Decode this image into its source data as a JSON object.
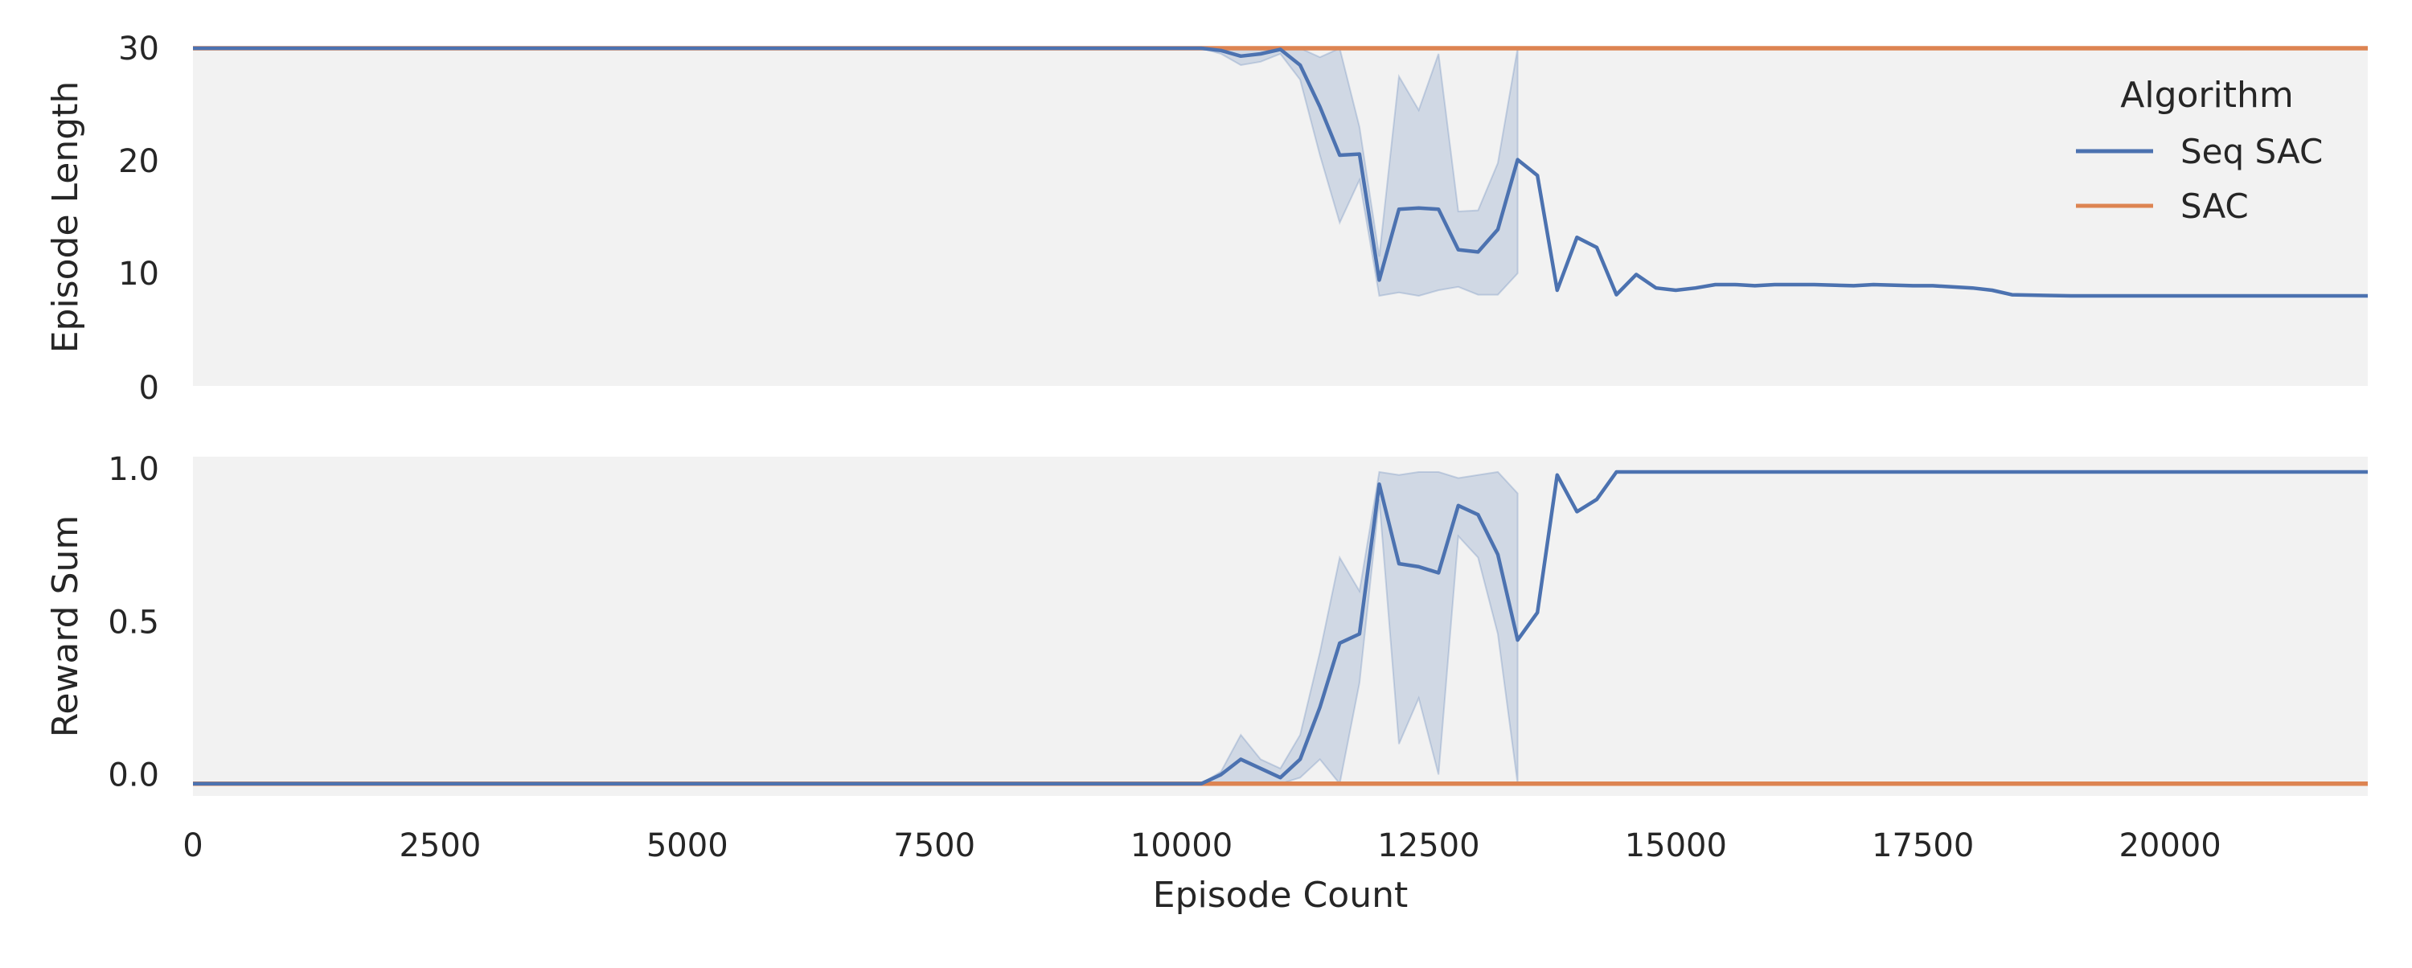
{
  "legend": {
    "title": "Algorithm",
    "entries": [
      {
        "label": "Seq SAC",
        "color": "#4c72b0"
      },
      {
        "label": "SAC",
        "color": "#dd8452"
      }
    ],
    "placement": "top-right"
  },
  "colors": {
    "plot_background": "#f2f2f2",
    "seq_sac": "#4c72b0",
    "seq_sac_band": "#4c72b0",
    "sac": "#dd8452"
  },
  "chart_data": [
    {
      "type": "line",
      "ylabel": "Episode Length",
      "xlabel": "",
      "xlim": [
        0,
        22000
      ],
      "ylim": [
        0,
        30
      ],
      "yticks": [
        0,
        10,
        20,
        30
      ],
      "ytick_labels": [
        "0",
        "10",
        "20",
        "30"
      ],
      "grid": false,
      "series": [
        {
          "name": "Seq SAC",
          "x": [
            0,
            10000,
            10200,
            10400,
            10600,
            10800,
            11000,
            11200,
            11400,
            11600,
            11800,
            12000,
            12200,
            12400,
            12600,
            12800,
            13000,
            13200,
            13400,
            13600,
            13800,
            14000,
            14200,
            14400,
            14600,
            14800,
            15000,
            15200,
            15400,
            15600,
            15800,
            16000,
            16400,
            16800,
            17000,
            17400,
            17600,
            18000,
            18200,
            18400,
            19000,
            20000,
            21000,
            22000
          ],
          "y": [
            30,
            30,
            30,
            29.8,
            29.3,
            29.5,
            29.9,
            28.5,
            24.8,
            20.5,
            20.6,
            9.4,
            15.7,
            15.8,
            15.7,
            12.1,
            11.9,
            13.9,
            20.1,
            18.7,
            8.5,
            13.2,
            12.3,
            8.1,
            9.9,
            8.7,
            8.5,
            8.7,
            9.0,
            9.0,
            8.9,
            9.0,
            9.0,
            8.9,
            9.0,
            8.9,
            8.9,
            8.7,
            8.5,
            8.1,
            8.0,
            8.0,
            8.0,
            8.0
          ],
          "ci_x": [
            10000,
            10200,
            10400,
            10600,
            10800,
            11000,
            11200,
            11400,
            11600,
            11800,
            12000,
            12200,
            12400,
            12600,
            12800,
            13000,
            13200,
            13400
          ],
          "ci_low": [
            30,
            30,
            29.5,
            28.5,
            28.8,
            29.5,
            27.2,
            20.5,
            14.5,
            18.3,
            8.0,
            8.3,
            8.0,
            8.5,
            8.8,
            8.1,
            8.1,
            10.0
          ],
          "ci_high": [
            30,
            30,
            30,
            30,
            30,
            30,
            30,
            29.2,
            30,
            23,
            11.5,
            27.5,
            24.5,
            29.5,
            15.5,
            15.6,
            19.8,
            30
          ]
        },
        {
          "name": "SAC",
          "x": [
            0,
            22000
          ],
          "y": [
            30,
            30
          ]
        }
      ]
    },
    {
      "type": "line",
      "ylabel": "Reward Sum",
      "xlabel": "Episode Count",
      "xlim": [
        0,
        22000
      ],
      "ylim": [
        -0.07,
        1.04
      ],
      "xticks": [
        0,
        2500,
        5000,
        7500,
        10000,
        12500,
        15000,
        17500,
        20000
      ],
      "xtick_labels": [
        "0",
        "2500",
        "5000",
        "7500",
        "10000",
        "12500",
        "15000",
        "17500",
        "20000"
      ],
      "yticks": [
        0.0,
        0.5,
        1.0
      ],
      "ytick_labels": [
        "0.0",
        "0.5",
        "1.0"
      ],
      "grid": false,
      "series": [
        {
          "name": "Seq SAC",
          "x": [
            0,
            10000,
            10200,
            10400,
            10600,
            10800,
            11000,
            11200,
            11400,
            11600,
            11800,
            12000,
            12200,
            12400,
            12600,
            12800,
            13000,
            13200,
            13400,
            13600,
            13800,
            14000,
            14200,
            14400,
            14600,
            14800,
            15000,
            16000,
            17000,
            18000,
            19000,
            20000,
            21000,
            22000
          ],
          "y": [
            -0.03,
            -0.03,
            -0.03,
            0.0,
            0.05,
            0.02,
            -0.01,
            0.05,
            0.22,
            0.43,
            0.46,
            0.95,
            0.69,
            0.68,
            0.66,
            0.88,
            0.85,
            0.72,
            0.44,
            0.53,
            0.98,
            0.86,
            0.9,
            0.99,
            0.99,
            0.99,
            0.99,
            0.99,
            0.99,
            0.99,
            0.99,
            0.99,
            0.99,
            0.99
          ],
          "ci_x": [
            10000,
            10200,
            10400,
            10600,
            10800,
            11000,
            11200,
            11400,
            11600,
            11800,
            12000,
            12200,
            12400,
            12600,
            12800,
            13000,
            13200,
            13400
          ],
          "ci_low": [
            -0.03,
            -0.03,
            -0.03,
            -0.03,
            -0.03,
            -0.03,
            -0.01,
            0.05,
            -0.03,
            0.3,
            0.9,
            0.1,
            0.25,
            0.0,
            0.78,
            0.71,
            0.46,
            -0.03
          ],
          "ci_high": [
            -0.03,
            -0.03,
            0.01,
            0.13,
            0.05,
            0.02,
            0.13,
            0.4,
            0.71,
            0.6,
            0.99,
            0.98,
            0.99,
            0.99,
            0.97,
            0.98,
            0.99,
            0.92
          ]
        },
        {
          "name": "SAC",
          "x": [
            0,
            22000
          ],
          "y": [
            -0.03,
            -0.03
          ]
        }
      ]
    }
  ]
}
